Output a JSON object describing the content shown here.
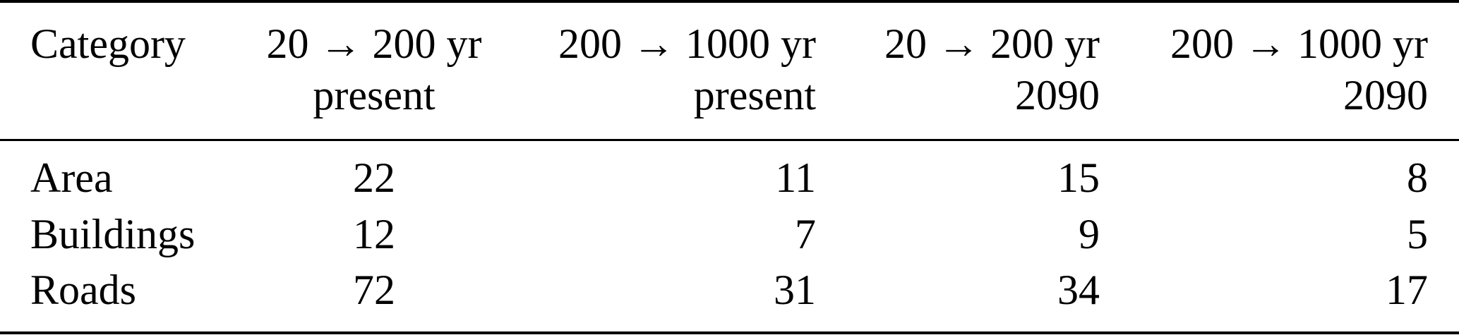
{
  "table": {
    "header": {
      "category": "Category",
      "columns": [
        {
          "line1": "20 → 200 yr",
          "line2": "present"
        },
        {
          "line1": "200 → 1000 yr",
          "line2": "present"
        },
        {
          "line1": "20 → 200 yr",
          "line2": "2090"
        },
        {
          "line1": "200 → 1000 yr",
          "line2": "2090"
        }
      ]
    },
    "rows": [
      {
        "category": "Area",
        "values": [
          "22",
          "11",
          "15",
          "8"
        ]
      },
      {
        "category": "Buildings",
        "values": [
          "12",
          "7",
          "9",
          "5"
        ]
      },
      {
        "category": "Roads",
        "values": [
          "72",
          "31",
          "34",
          "17"
        ]
      }
    ]
  }
}
